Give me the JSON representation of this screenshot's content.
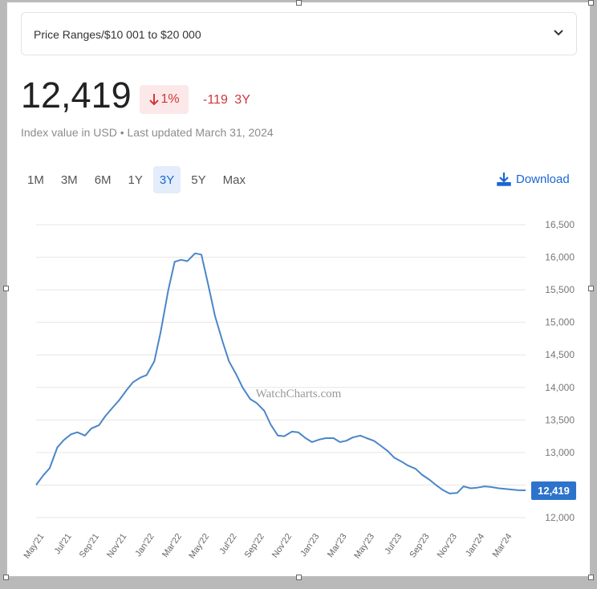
{
  "dropdown": {
    "label": "Price Ranges/$10 001 to $20 000"
  },
  "current": {
    "value": "12,419",
    "change_pct": "1%",
    "change_abs": "-119",
    "period": "3Y"
  },
  "subtitle": "Index value in USD • Last updated March 31, 2024",
  "ranges": [
    "1M",
    "3M",
    "6M",
    "1Y",
    "3Y",
    "5Y",
    "Max"
  ],
  "active_range": "3Y",
  "download_label": "Download",
  "watermark": "WatchCharts.com",
  "colors": {
    "line": "#4a86c8",
    "negative": "#d0363b",
    "accent": "#1a66d3",
    "label_bg": "#2d73cc"
  },
  "chart_data": {
    "type": "line",
    "ylim": [
      12000,
      16500
    ],
    "yticks": [
      "12,000",
      "12,500",
      "13,000",
      "13,500",
      "14,000",
      "14,500",
      "15,000",
      "15,500",
      "16,000",
      "16,500"
    ],
    "xticks": [
      "May'21",
      "Jul'21",
      "Sep'21",
      "Nov'21",
      "Jan'22",
      "Mar'22",
      "May'22",
      "Jul'22",
      "Sep'22",
      "Nov'22",
      "Jan'23",
      "Mar'23",
      "May'23",
      "Jul'23",
      "Sep'23",
      "Nov'23",
      "Jan'24",
      "Mar'24"
    ],
    "last_label": "12,419",
    "grid": true,
    "series": [
      {
        "x": [
          "2021-04-15",
          "2021-05-01",
          "2021-05-15",
          "2021-06-01",
          "2021-06-15",
          "2021-07-01",
          "2021-07-15",
          "2021-08-01",
          "2021-08-15",
          "2021-09-01",
          "2021-09-15",
          "2021-10-01",
          "2021-10-15",
          "2021-11-01",
          "2021-11-15",
          "2021-12-01",
          "2021-12-15",
          "2022-01-01",
          "2022-01-15",
          "2022-02-01",
          "2022-02-15",
          "2022-03-01",
          "2022-03-15",
          "2022-04-01",
          "2022-04-15",
          "2022-05-01",
          "2022-05-15",
          "2022-06-01",
          "2022-06-15",
          "2022-07-01",
          "2022-07-15",
          "2022-08-01",
          "2022-08-15",
          "2022-09-01",
          "2022-09-15",
          "2022-10-01",
          "2022-10-15",
          "2022-11-01",
          "2022-11-15",
          "2022-12-01",
          "2022-12-15",
          "2023-01-01",
          "2023-01-15",
          "2023-02-01",
          "2023-02-15",
          "2023-03-01",
          "2023-03-15",
          "2023-04-01",
          "2023-04-15",
          "2023-05-01",
          "2023-05-15",
          "2023-06-01",
          "2023-06-15",
          "2023-07-01",
          "2023-07-15",
          "2023-08-01",
          "2023-08-15",
          "2023-09-01",
          "2023-09-15",
          "2023-10-01",
          "2023-10-15",
          "2023-11-01",
          "2023-11-15",
          "2023-12-01",
          "2023-12-15",
          "2024-01-01",
          "2024-01-15",
          "2024-02-01",
          "2024-02-15",
          "2024-03-01",
          "2024-03-15",
          "2024-03-31"
        ],
        "y": [
          12500,
          12650,
          12760,
          13080,
          13190,
          13280,
          13310,
          13260,
          13370,
          13420,
          13560,
          13690,
          13800,
          13960,
          14080,
          14150,
          14190,
          14400,
          14850,
          15500,
          15930,
          15960,
          15940,
          16060,
          16040,
          15550,
          15100,
          14700,
          14400,
          14200,
          14000,
          13820,
          13760,
          13640,
          13430,
          13260,
          13250,
          13320,
          13310,
          13220,
          13160,
          13200,
          13220,
          13220,
          13160,
          13180,
          13230,
          13260,
          13220,
          13180,
          13110,
          13020,
          12920,
          12860,
          12800,
          12750,
          12660,
          12580,
          12500,
          12420,
          12370,
          12380,
          12480,
          12450,
          12460,
          12480,
          12470,
          12450,
          12440,
          12430,
          12420,
          12419
        ]
      }
    ]
  }
}
